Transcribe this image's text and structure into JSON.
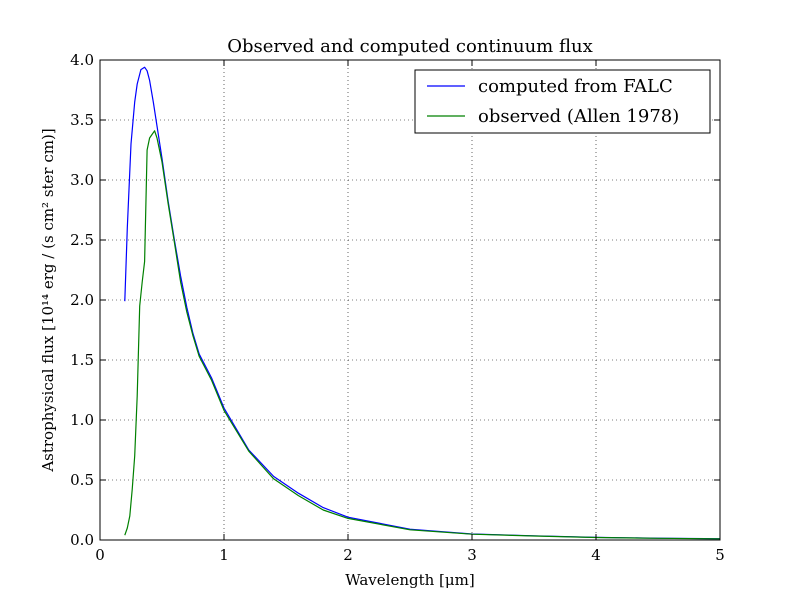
{
  "chart_data": {
    "type": "line",
    "title": "Observed and computed continuum flux",
    "xlabel": "Wavelength [μm]",
    "ylabel": "Astrophysical flux [10¹⁴ erg / (s cm² ster cm)]",
    "xlim": [
      0,
      5
    ],
    "ylim": [
      0,
      4.0
    ],
    "x_ticks": [
      "0",
      "1",
      "2",
      "3",
      "4",
      "5"
    ],
    "y_ticks": [
      "0.0",
      "0.5",
      "1.0",
      "1.5",
      "2.0",
      "2.5",
      "3.0",
      "3.5",
      "4.0"
    ],
    "grid": true,
    "grid_style": "dotted",
    "legend_position": "top-right",
    "series": [
      {
        "name": "computed from FALC",
        "color": "#0000ff",
        "x": [
          0.2,
          0.22,
          0.25,
          0.28,
          0.3,
          0.33,
          0.36,
          0.38,
          0.4,
          0.43,
          0.46,
          0.5,
          0.55,
          0.6,
          0.65,
          0.7,
          0.75,
          0.8,
          0.9,
          1.0,
          1.2,
          1.4,
          1.6,
          1.8,
          2.0,
          2.5,
          3.0,
          3.5,
          4.0,
          4.5,
          5.0
        ],
        "y": [
          1.99,
          2.6,
          3.3,
          3.65,
          3.8,
          3.92,
          3.94,
          3.91,
          3.83,
          3.65,
          3.45,
          3.18,
          2.82,
          2.5,
          2.2,
          1.94,
          1.72,
          1.55,
          1.35,
          1.1,
          0.75,
          0.53,
          0.39,
          0.27,
          0.19,
          0.09,
          0.05,
          0.035,
          0.022,
          0.015,
          0.011
        ]
      },
      {
        "name": "observed (Allen 1978)",
        "color": "#008000",
        "x": [
          0.2,
          0.22,
          0.24,
          0.26,
          0.28,
          0.3,
          0.32,
          0.34,
          0.36,
          0.38,
          0.4,
          0.42,
          0.44,
          0.46,
          0.5,
          0.55,
          0.6,
          0.65,
          0.7,
          0.75,
          0.8,
          0.9,
          1.0,
          1.2,
          1.4,
          1.6,
          1.8,
          2.0,
          2.5,
          3.0,
          3.5,
          4.0,
          4.5,
          5.0
        ],
        "y": [
          0.04,
          0.1,
          0.2,
          0.42,
          0.7,
          1.2,
          1.95,
          2.15,
          2.32,
          3.25,
          3.35,
          3.38,
          3.41,
          3.35,
          3.15,
          2.8,
          2.48,
          2.15,
          1.9,
          1.7,
          1.53,
          1.33,
          1.08,
          0.74,
          0.51,
          0.37,
          0.25,
          0.18,
          0.085,
          0.048,
          0.033,
          0.021,
          0.014,
          0.01
        ]
      }
    ]
  }
}
